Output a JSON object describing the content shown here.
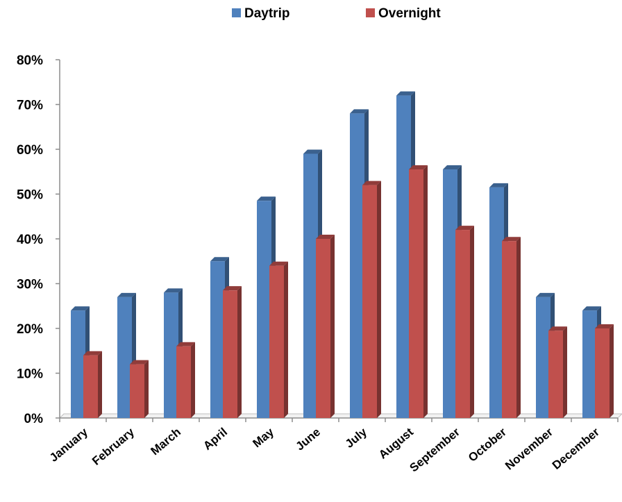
{
  "chart_data": {
    "type": "bar",
    "title": "",
    "xlabel": "",
    "ylabel": "",
    "categories": [
      "January",
      "February",
      "March",
      "April",
      "May",
      "June",
      "July",
      "August",
      "September",
      "October",
      "November",
      "December"
    ],
    "series": [
      {
        "name": "Daytrip",
        "color": "#4F81BD",
        "values": [
          24,
          27,
          28,
          35,
          48.5,
          59,
          68,
          72,
          55.5,
          51.5,
          27,
          24
        ]
      },
      {
        "name": "Overnight",
        "color": "#C0504D",
        "values": [
          14,
          12,
          16,
          28.5,
          34,
          40,
          52,
          55.5,
          42,
          39.5,
          19.5,
          20
        ]
      }
    ],
    "ylim": [
      0,
      80
    ],
    "yticks": [
      "0%",
      "10%",
      "20%",
      "30%",
      "40%",
      "50%",
      "60%",
      "70%",
      "80%"
    ],
    "grid": false,
    "legend_position": "top-center",
    "three_d": true
  }
}
